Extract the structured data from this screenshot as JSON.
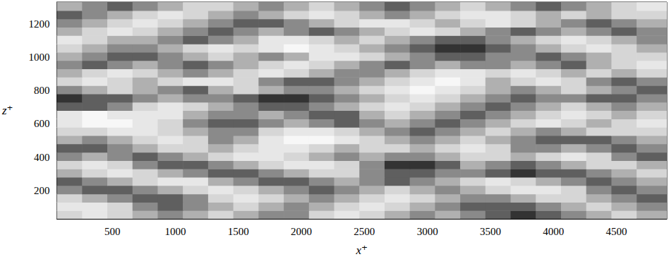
{
  "chart_data": {
    "type": "heatmap",
    "xlabel": "x⁺",
    "ylabel": "z⁺",
    "xlim": [
      60,
      4900
    ],
    "ylim": [
      30,
      1330
    ],
    "xticks": [
      500,
      1000,
      1500,
      2000,
      2500,
      3000,
      3500,
      4000,
      4500
    ],
    "yticks": [
      200,
      400,
      600,
      800,
      1000,
      1200
    ],
    "grid": false,
    "x_edges": [
      60,
      260,
      460,
      660,
      860,
      1060,
      1260,
      1460,
      1660,
      1860,
      2060,
      2260,
      2460,
      2660,
      2860,
      3060,
      3260,
      3460,
      3660,
      3860,
      4060,
      4260,
      4460,
      4660,
      4900
    ],
    "z_edges": [
      30,
      80,
      130,
      180,
      230,
      280,
      330,
      380,
      430,
      480,
      530,
      580,
      630,
      680,
      730,
      780,
      830,
      880,
      930,
      980,
      1030,
      1080,
      1130,
      1180,
      1230,
      1280,
      1330
    ],
    "cells": [
      [
        1,
        2,
        1,
        0,
        -1,
        0,
        1,
        0,
        -1,
        -1,
        1,
        2,
        1,
        0,
        -1,
        0,
        -1,
        -2,
        -3,
        -2,
        -1,
        0,
        1,
        0
      ],
      [
        2,
        2,
        1,
        -1,
        -2,
        -1,
        0,
        1,
        0,
        -1,
        0,
        1,
        2,
        1,
        0,
        -1,
        -2,
        -2,
        -2,
        -1,
        0,
        1,
        0,
        -1
      ],
      [
        1,
        0,
        -1,
        -2,
        -2,
        -1,
        1,
        2,
        1,
        0,
        -1,
        0,
        1,
        2,
        1,
        0,
        -1,
        -1,
        0,
        1,
        1,
        0,
        -1,
        -2
      ],
      [
        -1,
        -2,
        -2,
        -1,
        0,
        1,
        2,
        1,
        0,
        -1,
        -2,
        -1,
        0,
        1,
        0,
        -1,
        0,
        1,
        2,
        2,
        1,
        -1,
        -2,
        -1
      ],
      [
        -2,
        -1,
        0,
        1,
        2,
        2,
        0,
        -1,
        -2,
        -2,
        -1,
        0,
        -1,
        -2,
        -1,
        0,
        1,
        2,
        1,
        0,
        -1,
        -2,
        -1,
        0
      ],
      [
        0,
        1,
        2,
        1,
        0,
        -1,
        -2,
        -2,
        -1,
        0,
        1,
        1,
        -1,
        -2,
        -2,
        -1,
        -1,
        -2,
        -3,
        -2,
        -2,
        -1,
        0,
        1
      ],
      [
        1,
        2,
        1,
        -1,
        -2,
        -2,
        -1,
        0,
        1,
        2,
        2,
        1,
        -1,
        -3,
        -3,
        -2,
        0,
        -1,
        -2,
        -1,
        0,
        1,
        1,
        0
      ],
      [
        -1,
        0,
        -1,
        -2,
        -1,
        0,
        1,
        2,
        2,
        1,
        0,
        -1,
        0,
        -1,
        -1,
        0,
        1,
        1,
        0,
        1,
        2,
        1,
        -1,
        -2
      ],
      [
        -2,
        -2,
        -1,
        0,
        1,
        1,
        0,
        1,
        2,
        2,
        1,
        0,
        1,
        1,
        0,
        1,
        2,
        1,
        -1,
        -1,
        0,
        -1,
        -2,
        -1
      ],
      [
        0,
        -1,
        0,
        1,
        2,
        1,
        -1,
        0,
        2,
        3,
        3,
        2,
        1,
        0,
        -1,
        0,
        1,
        0,
        -1,
        -2,
        -2,
        -2,
        -1,
        0
      ],
      [
        1,
        1,
        2,
        2,
        1,
        0,
        -1,
        -1,
        1,
        2,
        2,
        1,
        0,
        -1,
        -2,
        -1,
        0,
        1,
        0,
        -1,
        0,
        1,
        1,
        1
      ],
      [
        2,
        3,
        3,
        2,
        1,
        -1,
        -2,
        -2,
        -1,
        0,
        -1,
        -2,
        -1,
        0,
        -1,
        -2,
        -1,
        0,
        1,
        2,
        1,
        0,
        1,
        2
      ],
      [
        2,
        3,
        2,
        2,
        2,
        0,
        -1,
        -1,
        0,
        -1,
        -2,
        -2,
        0,
        1,
        0,
        -1,
        -2,
        -1,
        0,
        1,
        2,
        1,
        0,
        1
      ],
      [
        -2,
        -2,
        -1,
        1,
        2,
        1,
        0,
        -1,
        -2,
        -2,
        -1,
        0,
        1,
        2,
        1,
        0,
        -1,
        -2,
        -1,
        0,
        1,
        0,
        -1,
        0
      ],
      [
        -3,
        -2,
        -2,
        -1,
        0,
        -1,
        -1,
        -2,
        -3,
        -3,
        -2,
        -1,
        0,
        1,
        2,
        1,
        0,
        -1,
        -2,
        -1,
        -1,
        -2,
        -2,
        -1
      ],
      [
        -1,
        0,
        1,
        0,
        -1,
        -2,
        0,
        1,
        0,
        -1,
        -1,
        0,
        1,
        2,
        3,
        2,
        1,
        0,
        -1,
        0,
        1,
        0,
        -1,
        -2
      ],
      [
        1,
        2,
        1,
        0,
        1,
        2,
        2,
        1,
        -1,
        -2,
        -2,
        -1,
        0,
        1,
        2,
        3,
        2,
        0,
        1,
        2,
        1,
        -1,
        -2,
        -1
      ],
      [
        0,
        1,
        2,
        1,
        0,
        -1,
        0,
        1,
        2,
        1,
        0,
        -1,
        -1,
        0,
        1,
        2,
        2,
        1,
        2,
        1,
        0,
        1,
        0,
        1
      ],
      [
        -1,
        -2,
        -1,
        0,
        -1,
        -2,
        -1,
        0,
        1,
        2,
        1,
        0,
        -1,
        -2,
        -1,
        0,
        -1,
        -1,
        0,
        -1,
        -2,
        0,
        1,
        2
      ],
      [
        0,
        -1,
        -2,
        -2,
        -1,
        0,
        1,
        0,
        -1,
        0,
        2,
        2,
        1,
        0,
        -1,
        -2,
        -2,
        -1,
        -1,
        -2,
        -1,
        0,
        1,
        1
      ],
      [
        1,
        0,
        -1,
        -1,
        0,
        1,
        2,
        1,
        2,
        3,
        2,
        1,
        0,
        -1,
        -2,
        -3,
        -3,
        -2,
        -1,
        0,
        1,
        2,
        1,
        0
      ],
      [
        2,
        1,
        0,
        0,
        -1,
        -2,
        -1,
        0,
        2,
        2,
        1,
        0,
        1,
        0,
        -1,
        -2,
        -2,
        -1,
        0,
        1,
        2,
        1,
        0,
        -1
      ],
      [
        0,
        1,
        2,
        1,
        0,
        -1,
        -2,
        -1,
        0,
        -1,
        -2,
        -1,
        0,
        1,
        2,
        1,
        0,
        -1,
        -2,
        -1,
        0,
        -1,
        -2,
        -1
      ],
      [
        -1,
        0,
        1,
        2,
        1,
        0,
        -1,
        -2,
        -2,
        -1,
        0,
        1,
        2,
        2,
        1,
        0,
        1,
        2,
        1,
        0,
        -1,
        -2,
        -1,
        0
      ],
      [
        -2,
        -1,
        0,
        1,
        2,
        1,
        0,
        -1,
        0,
        1,
        2,
        1,
        0,
        -1,
        0,
        1,
        2,
        2,
        1,
        0,
        1,
        0,
        1,
        1
      ],
      [
        0,
        -1,
        -2,
        -1,
        0,
        1,
        1,
        0,
        -1,
        0,
        1,
        0,
        -1,
        -2,
        -1,
        0,
        1,
        0,
        -1,
        -2,
        -1,
        0,
        1,
        2
      ]
    ]
  }
}
